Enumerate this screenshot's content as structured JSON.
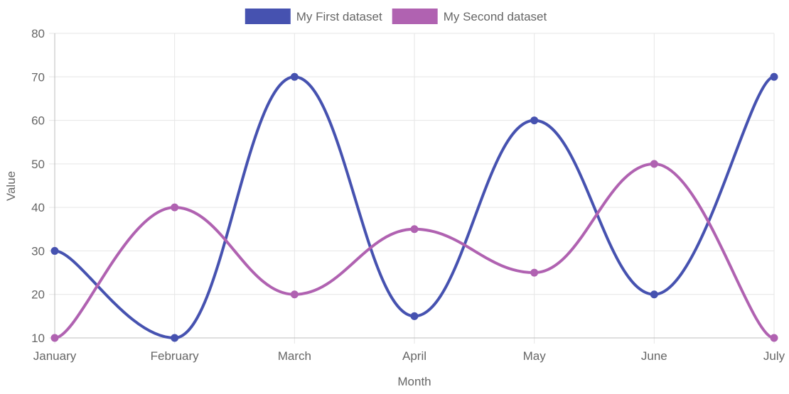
{
  "chart_data": {
    "type": "line",
    "categories": [
      "January",
      "February",
      "March",
      "April",
      "May",
      "June",
      "July"
    ],
    "series": [
      {
        "name": "My First dataset",
        "values": [
          30,
          10,
          70,
          15,
          60,
          20,
          70
        ],
        "color": "#4652b0"
      },
      {
        "name": "My Second dataset",
        "values": [
          10,
          40,
          20,
          35,
          25,
          50,
          10
        ],
        "color": "#b062b1"
      }
    ],
    "title": "",
    "xlabel": "Month",
    "ylabel": "Value",
    "ylim": [
      10,
      80
    ],
    "y_ticks": [
      10,
      20,
      30,
      40,
      50,
      60,
      70,
      80
    ],
    "grid": true,
    "legend_position": "top-center",
    "interpolation": "smooth"
  }
}
